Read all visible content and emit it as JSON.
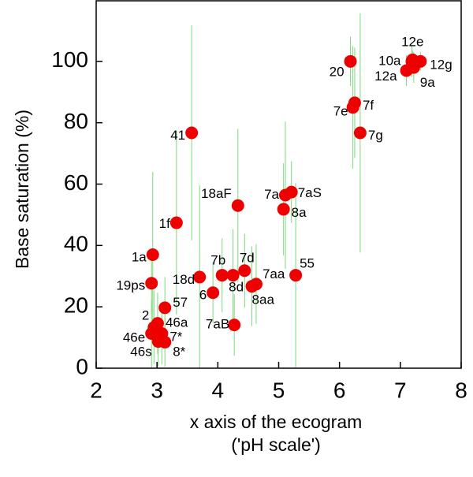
{
  "chart_data": {
    "type": "scatter",
    "xlabel": "x axis of the ecogram",
    "xlabel2": "('pH scale')",
    "ylabel": "Base saturation (%)",
    "xlim": [
      2,
      8
    ],
    "ylim": [
      0,
      120
    ],
    "xticks": [
      2,
      3,
      4,
      5,
      6,
      7,
      8
    ],
    "yticks": [
      0,
      20,
      40,
      60,
      80,
      100
    ],
    "color": "#ee0000",
    "error_color": "#7bd87b",
    "labels": [
      "20",
      "10a",
      "12e",
      "12g",
      "9a",
      "12a",
      "7e",
      "7f",
      "7g",
      "41",
      "18aF",
      "7a",
      "7aS",
      "8a",
      "1f",
      "1a",
      "7b",
      "7d",
      "8d",
      "7aa",
      "8aa",
      "55",
      "18d",
      "6",
      "19ps",
      "57",
      "2",
      "46a",
      "46e",
      "7*",
      "46s",
      "8*",
      "7aB"
    ],
    "x": [
      6.18,
      7.19,
      7.2,
      7.33,
      7.22,
      7.1,
      6.22,
      6.25,
      6.34,
      3.57,
      4.33,
      5.11,
      5.21,
      5.08,
      3.32,
      2.93,
      4.07,
      4.44,
      4.25,
      4.63,
      4.56,
      5.28,
      3.7,
      3.92,
      2.91,
      3.13,
      2.95,
      3.01,
      2.91,
      3.08,
      3.02,
      3.13,
      4.27
    ],
    "values": [
      100,
      100,
      100.5,
      100,
      98,
      97,
      85,
      86.5,
      76.7,
      76.7,
      53,
      56.4,
      57.4,
      51.8,
      47.4,
      37,
      30.3,
      31.8,
      30.3,
      27.4,
      26.7,
      30.3,
      29.7,
      24.6,
      27.7,
      19.7,
      13.3,
      14.6,
      11.3,
      11.3,
      8.7,
      8.5,
      14.1
    ],
    "errors": [
      8,
      5,
      3,
      3,
      5,
      5,
      20,
      18,
      39,
      35,
      25,
      24,
      10,
      15,
      30,
      27,
      12,
      12,
      15,
      13,
      13,
      30,
      30,
      10,
      10,
      10,
      12,
      10,
      11,
      10,
      8,
      8,
      10
    ]
  }
}
